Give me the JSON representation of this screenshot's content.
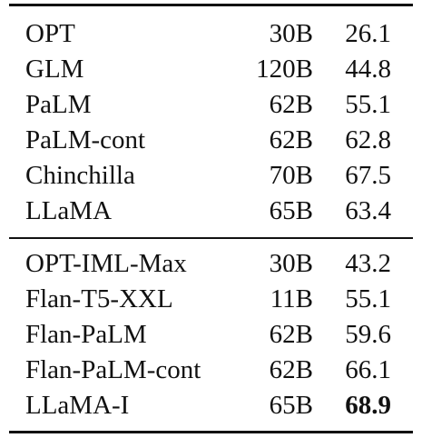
{
  "table": {
    "group1": [
      {
        "model": "OPT",
        "size": "30B",
        "score": "26.1",
        "bold": false
      },
      {
        "model": "GLM",
        "size": "120B",
        "score": "44.8",
        "bold": false
      },
      {
        "model": "PaLM",
        "size": "62B",
        "score": "55.1",
        "bold": false
      },
      {
        "model": "PaLM-cont",
        "size": "62B",
        "score": "62.8",
        "bold": false
      },
      {
        "model": "Chinchilla",
        "size": "70B",
        "score": "67.5",
        "bold": false
      },
      {
        "model": "LLaMA",
        "size": "65B",
        "score": "63.4",
        "bold": false
      }
    ],
    "group2": [
      {
        "model": "OPT-IML-Max",
        "size": "30B",
        "score": "43.2",
        "bold": false
      },
      {
        "model": "Flan-T5-XXL",
        "size": "11B",
        "score": "55.1",
        "bold": false
      },
      {
        "model": "Flan-PaLM",
        "size": "62B",
        "score": "59.6",
        "bold": false
      },
      {
        "model": "Flan-PaLM-cont",
        "size": "62B",
        "score": "66.1",
        "bold": false
      },
      {
        "model": "LLaMA-I",
        "size": "65B",
        "score": "68.9",
        "bold": true
      }
    ]
  }
}
